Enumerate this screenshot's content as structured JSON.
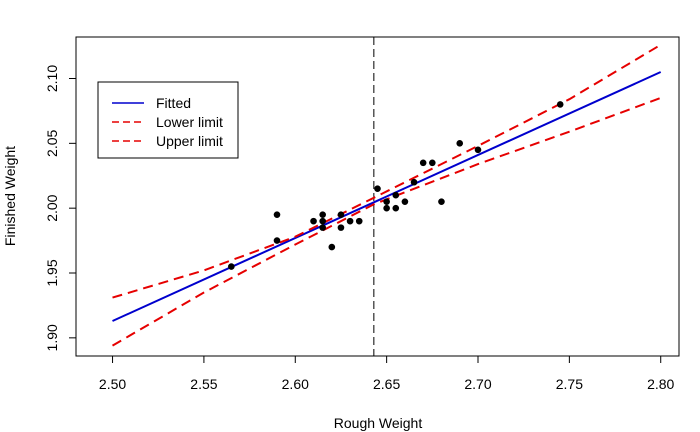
{
  "chart_data": {
    "type": "scatter",
    "title": "",
    "xlabel": "Rough Weight",
    "ylabel": "Finished Weight",
    "xlim": [
      2.48,
      2.81
    ],
    "ylim": [
      1.886,
      2.132
    ],
    "x_ticks": [
      2.5,
      2.55,
      2.6,
      2.65,
      2.7,
      2.75,
      2.8
    ],
    "x_tick_labels": [
      "2.50",
      "2.55",
      "2.60",
      "2.65",
      "2.70",
      "2.75",
      "2.80"
    ],
    "y_ticks": [
      1.9,
      1.95,
      2.0,
      2.05,
      2.1
    ],
    "y_tick_labels": [
      "1.90",
      "1.95",
      "2.00",
      "2.05",
      "2.10"
    ],
    "grid": false,
    "legend_position": "top-left",
    "points": [
      {
        "x": 2.565,
        "y": 1.955
      },
      {
        "x": 2.59,
        "y": 1.995
      },
      {
        "x": 2.59,
        "y": 1.975
      },
      {
        "x": 2.61,
        "y": 1.99
      },
      {
        "x": 2.615,
        "y": 1.995
      },
      {
        "x": 2.615,
        "y": 1.99
      },
      {
        "x": 2.615,
        "y": 1.985
      },
      {
        "x": 2.62,
        "y": 1.97
      },
      {
        "x": 2.625,
        "y": 1.995
      },
      {
        "x": 2.625,
        "y": 1.985
      },
      {
        "x": 2.63,
        "y": 1.99
      },
      {
        "x": 2.635,
        "y": 1.99
      },
      {
        "x": 2.645,
        "y": 2.015
      },
      {
        "x": 2.65,
        "y": 2.005
      },
      {
        "x": 2.65,
        "y": 2.0
      },
      {
        "x": 2.655,
        "y": 2.01
      },
      {
        "x": 2.655,
        "y": 2.0
      },
      {
        "x": 2.66,
        "y": 2.005
      },
      {
        "x": 2.665,
        "y": 2.02
      },
      {
        "x": 2.67,
        "y": 2.035
      },
      {
        "x": 2.675,
        "y": 2.035
      },
      {
        "x": 2.68,
        "y": 2.005
      },
      {
        "x": 2.69,
        "y": 2.05
      },
      {
        "x": 2.7,
        "y": 2.045
      },
      {
        "x": 2.745,
        "y": 2.08
      }
    ],
    "vertical_line": {
      "x": 2.643,
      "color": "#000000",
      "style": "dashed"
    },
    "series": [
      {
        "name": "Fitted",
        "color": "#0000cd",
        "style": "solid",
        "x": [
          2.5,
          2.8
        ],
        "y": [
          1.913,
          2.105
        ]
      },
      {
        "name": "Lower limit",
        "color": "#e60000",
        "style": "dashed",
        "x": [
          2.5,
          2.55,
          2.6,
          2.643,
          2.7,
          2.75,
          2.8
        ],
        "y": [
          1.894,
          1.935,
          1.972,
          2.003,
          2.034,
          2.059,
          2.085
        ]
      },
      {
        "name": "Upper limit",
        "color": "#e60000",
        "style": "dashed",
        "x": [
          2.5,
          2.55,
          2.6,
          2.643,
          2.7,
          2.75,
          2.8
        ],
        "y": [
          1.931,
          1.952,
          1.978,
          2.008,
          2.048,
          2.084,
          2.126
        ]
      }
    ]
  }
}
